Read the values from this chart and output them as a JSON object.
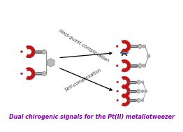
{
  "title": "Dual chirogenic signals for the Pt(II) metallotweezer",
  "title_color": "#8800BB",
  "title_fontsize": 5.8,
  "label_host_guest": "Host-guest complexation",
  "label_self": "Self-complexation",
  "label_color": "#333333",
  "label_fontsize": 4.8,
  "red_dark": "#CC1111",
  "red_edge": "#991111",
  "cyan_shadow": "#90CCDD",
  "gray_hex": "#BBBBBB",
  "gray_hex_edge": "#888888",
  "gray_bar_dark": "#555555",
  "gray_bar_mid": "#888888",
  "gray_bar_light": "#BBBBBB",
  "blue_guest": "#1155BB",
  "black_guest": "#111111"
}
